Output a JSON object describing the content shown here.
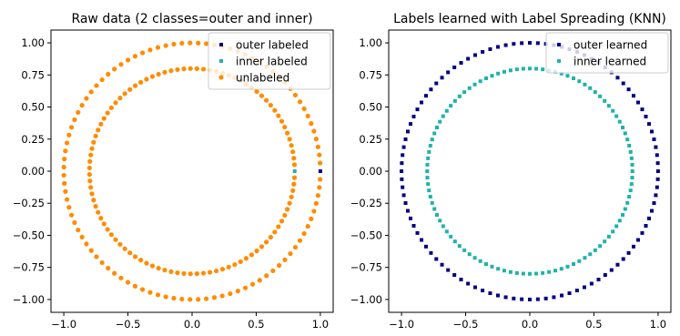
{
  "chart_data": [
    {
      "type": "scatter",
      "title": "Raw data (2 classes=outer and inner)",
      "xlabel": "",
      "ylabel": "",
      "xlim": [
        -1.1,
        1.1
      ],
      "ylim": [
        -1.1,
        1.1
      ],
      "xticks": [
        "−1.0",
        "−0.5",
        "0.0",
        "0.5",
        "1.0"
      ],
      "xtick_values": [
        -1.0,
        -0.5,
        0.0,
        0.5,
        1.0
      ],
      "yticks": [
        "1.00",
        "0.75",
        "0.50",
        "0.25",
        "0.00",
        "−0.25",
        "−0.50",
        "−0.75",
        "−1.00"
      ],
      "ytick_values": [
        1.0,
        0.75,
        0.5,
        0.25,
        0.0,
        -0.25,
        -0.5,
        -0.75,
        -1.0
      ],
      "grid": false,
      "legend_position": "top-right",
      "series": [
        {
          "name": "outer labeled",
          "color": "#000080",
          "marker": "square",
          "points": [
            [
              1.0,
              0.0
            ]
          ]
        },
        {
          "name": "inner labeled",
          "color": "#20B2AA",
          "marker": "square",
          "points": [
            [
              0.8,
              0.0
            ]
          ]
        },
        {
          "name": "unlabeled",
          "color": "#FF8C00",
          "marker": "circle",
          "rings": [
            {
              "radius": 1.0,
              "count": 99,
              "skip_first": true
            },
            {
              "radius": 0.8,
              "count": 99,
              "skip_first": true
            }
          ]
        }
      ]
    },
    {
      "type": "scatter",
      "title": "Labels learned with Label Spreading (KNN)",
      "xlabel": "",
      "ylabel": "",
      "xlim": [
        -1.1,
        1.1
      ],
      "ylim": [
        -1.1,
        1.1
      ],
      "xticks": [
        "−1.0",
        "−0.5",
        "0.0",
        "0.5",
        "1.0"
      ],
      "xtick_values": [
        -1.0,
        -0.5,
        0.0,
        0.5,
        1.0
      ],
      "yticks": [
        "1.00",
        "0.75",
        "0.50",
        "0.25",
        "0.00",
        "−0.25",
        "−0.50",
        "−0.75",
        "−1.00"
      ],
      "ytick_values": [
        1.0,
        0.75,
        0.5,
        0.25,
        0.0,
        -0.25,
        -0.5,
        -0.75,
        -1.0
      ],
      "grid": false,
      "legend_position": "top-right",
      "series": [
        {
          "name": "outer learned",
          "color": "#000080",
          "marker": "square",
          "rings": [
            {
              "radius": 1.0,
              "count": 100,
              "skip_first": false
            }
          ]
        },
        {
          "name": "inner learned",
          "color": "#20B2AA",
          "marker": "square",
          "rings": [
            {
              "radius": 0.8,
              "count": 100,
              "skip_first": false
            }
          ]
        }
      ]
    }
  ]
}
